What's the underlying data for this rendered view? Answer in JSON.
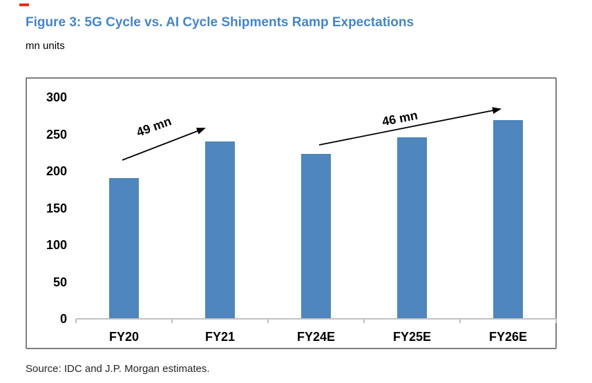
{
  "header": {
    "title": "Figure 3: 5G Cycle vs. AI Cycle Shipments Ramp Expectations",
    "subtitle": "mn units"
  },
  "colors": {
    "title_blue": "#4585C5",
    "bar_blue": "#4E86BD",
    "frame_gray": "#7F7F7F",
    "axis_gray": "#BFBFBF",
    "red_mark": "#E0301E",
    "text_black": "#000000"
  },
  "chart_data": {
    "type": "bar",
    "title": "Figure 3: 5G Cycle vs. AI Cycle Shipments Ramp Expectations",
    "ylabel": "mn units",
    "xlabel": "",
    "categories": [
      "FY20",
      "FY21",
      "FY24E",
      "FY25E",
      "FY26E"
    ],
    "values": [
      190,
      239,
      222,
      245,
      268
    ],
    "ylim": [
      0,
      300
    ],
    "yticks": [
      0,
      50,
      100,
      150,
      200,
      250,
      300
    ],
    "grid": false,
    "legend": false,
    "bar_color": "#4E86BD",
    "annotations": [
      {
        "label": "49 mn",
        "from_category": "FY20",
        "to_category": "FY21"
      },
      {
        "label": "46 mn",
        "from_category": "FY24E",
        "to_category": "FY26E"
      }
    ]
  },
  "footer": {
    "source": "Source: IDC and J.P. Morgan estimates."
  }
}
